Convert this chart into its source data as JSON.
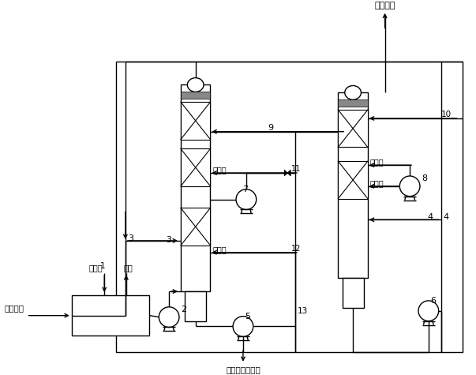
{
  "bg_color": "#ffffff",
  "line_color": "#000000",
  "figsize": [
    6.03,
    4.75
  ],
  "dpi": 100,
  "labels": {
    "exhaust": "焚烧废气",
    "desalted_water": "脱盐水",
    "steam": "蒸汽",
    "circ_liq": "循环液",
    "outlet": "达标排放",
    "after_treatment": "循环液去后处理"
  }
}
